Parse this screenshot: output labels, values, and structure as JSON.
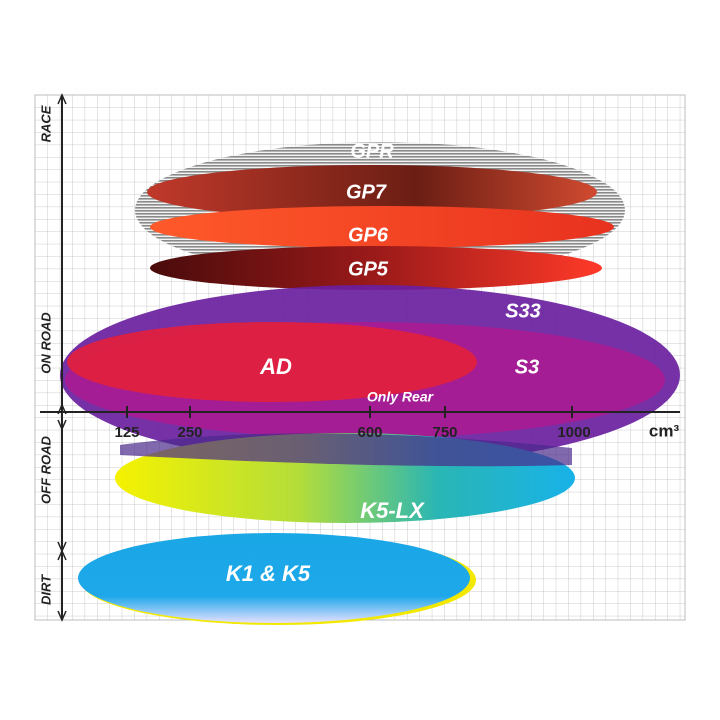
{
  "y_axis": [
    "RACE",
    "ON ROAD",
    "OFF ROAD",
    "DIRT"
  ],
  "x_axis": {
    "ticks": [
      "125",
      "250",
      "600",
      "750",
      "1000"
    ],
    "unit": "cm³"
  },
  "products": [
    {
      "label": "GPR"
    },
    {
      "label": "GP7"
    },
    {
      "label": "GP6"
    },
    {
      "label": "GP5"
    },
    {
      "label": "S33"
    },
    {
      "label": "S3"
    },
    {
      "label": "AD"
    },
    {
      "label": "K5-LX"
    },
    {
      "label": "K1 & K5"
    }
  ],
  "note": "Only Rear"
}
